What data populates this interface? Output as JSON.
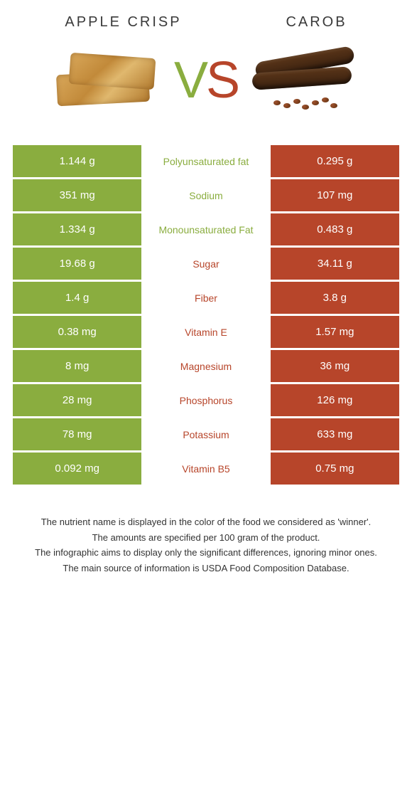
{
  "colors": {
    "left": "#8aad3f",
    "right": "#b7452a",
    "text": "#333333",
    "bg": "#ffffff"
  },
  "header": {
    "left_title": "APPLE CRISP",
    "right_title": "CAROB",
    "vs_v": "V",
    "vs_s": "S"
  },
  "rows": [
    {
      "left": "1.144 g",
      "label": "Polyunsaturated fat",
      "right": "0.295 g",
      "winner": "left"
    },
    {
      "left": "351 mg",
      "label": "Sodium",
      "right": "107 mg",
      "winner": "left"
    },
    {
      "left": "1.334 g",
      "label": "Monounsaturated Fat",
      "right": "0.483 g",
      "winner": "left"
    },
    {
      "left": "19.68 g",
      "label": "Sugar",
      "right": "34.11 g",
      "winner": "right"
    },
    {
      "left": "1.4 g",
      "label": "Fiber",
      "right": "3.8 g",
      "winner": "right"
    },
    {
      "left": "0.38 mg",
      "label": "Vitamin E",
      "right": "1.57 mg",
      "winner": "right"
    },
    {
      "left": "8 mg",
      "label": "Magnesium",
      "right": "36 mg",
      "winner": "right"
    },
    {
      "left": "28 mg",
      "label": "Phosphorus",
      "right": "126 mg",
      "winner": "right"
    },
    {
      "left": "78 mg",
      "label": "Potassium",
      "right": "633 mg",
      "winner": "right"
    },
    {
      "left": "0.092 mg",
      "label": "Vitamin B5",
      "right": "0.75 mg",
      "winner": "right"
    }
  ],
  "footer": {
    "l1": "The nutrient name is displayed in the color of the food we considered as 'winner'.",
    "l2": "The amounts are specified per 100 gram of the product.",
    "l3": "The infographic aims to display only the significant differences, ignoring minor ones.",
    "l4": "The main source of information is USDA Food Composition Database."
  }
}
